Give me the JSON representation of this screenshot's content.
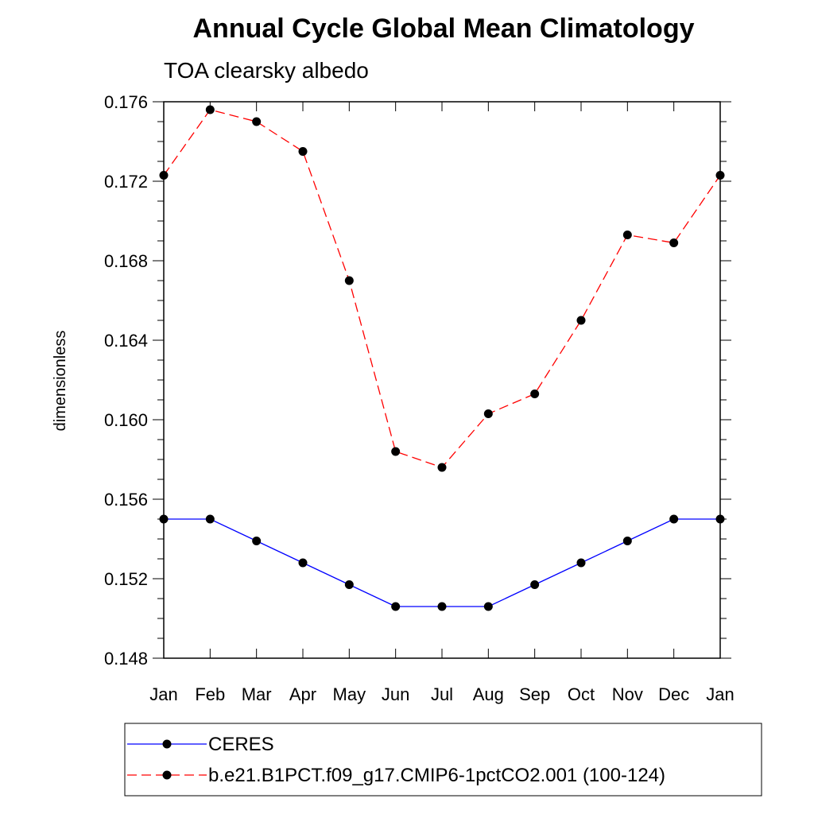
{
  "chart_data": {
    "type": "line",
    "title": "Annual Cycle Global Mean Climatology",
    "subtitle": "TOA clearsky albedo",
    "ylabel": "dimensionless",
    "xlabel": "",
    "categories": [
      "Jan",
      "Feb",
      "Mar",
      "Apr",
      "May",
      "Jun",
      "Jul",
      "Aug",
      "Sep",
      "Oct",
      "Nov",
      "Dec",
      "Jan"
    ],
    "ylim": [
      0.148,
      0.176
    ],
    "yticks": [
      "0.148",
      "0.152",
      "0.156",
      "0.160",
      "0.164",
      "0.168",
      "0.172",
      "0.176"
    ],
    "series": [
      {
        "name": "CERES",
        "color": "#0000ff",
        "dash": "solid",
        "values": [
          0.155,
          0.155,
          0.1539,
          0.1528,
          0.1517,
          0.1506,
          0.1506,
          0.1506,
          0.1517,
          0.1528,
          0.1539,
          0.155,
          0.155
        ]
      },
      {
        "name": "b.e21.B1PCT.f09_g17.CMIP6-1pctCO2.001 (100-124)",
        "color": "#ff0000",
        "dash": "dashed",
        "values": [
          0.1723,
          0.1756,
          0.175,
          0.1735,
          0.167,
          0.1584,
          0.1576,
          0.1603,
          0.1613,
          0.165,
          0.1693,
          0.1689,
          0.1723
        ]
      }
    ],
    "legend_position": "bottom"
  }
}
